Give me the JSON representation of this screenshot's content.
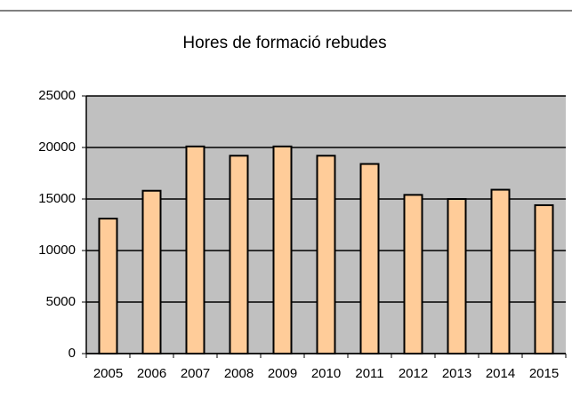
{
  "chart_data": {
    "type": "bar",
    "title": "Hores de formació rebudes",
    "categories": [
      "2005",
      "2006",
      "2007",
      "2008",
      "2009",
      "2010",
      "2011",
      "2012",
      "2013",
      "2014",
      "2015"
    ],
    "values": [
      13100,
      15800,
      20100,
      19200,
      20100,
      19200,
      18400,
      15400,
      15000,
      15900,
      14400
    ],
    "color": "#ffcc99",
    "ylim": [
      0,
      25000
    ],
    "yticks": [
      0,
      5000,
      10000,
      15000,
      20000,
      25000
    ],
    "grid": true
  }
}
